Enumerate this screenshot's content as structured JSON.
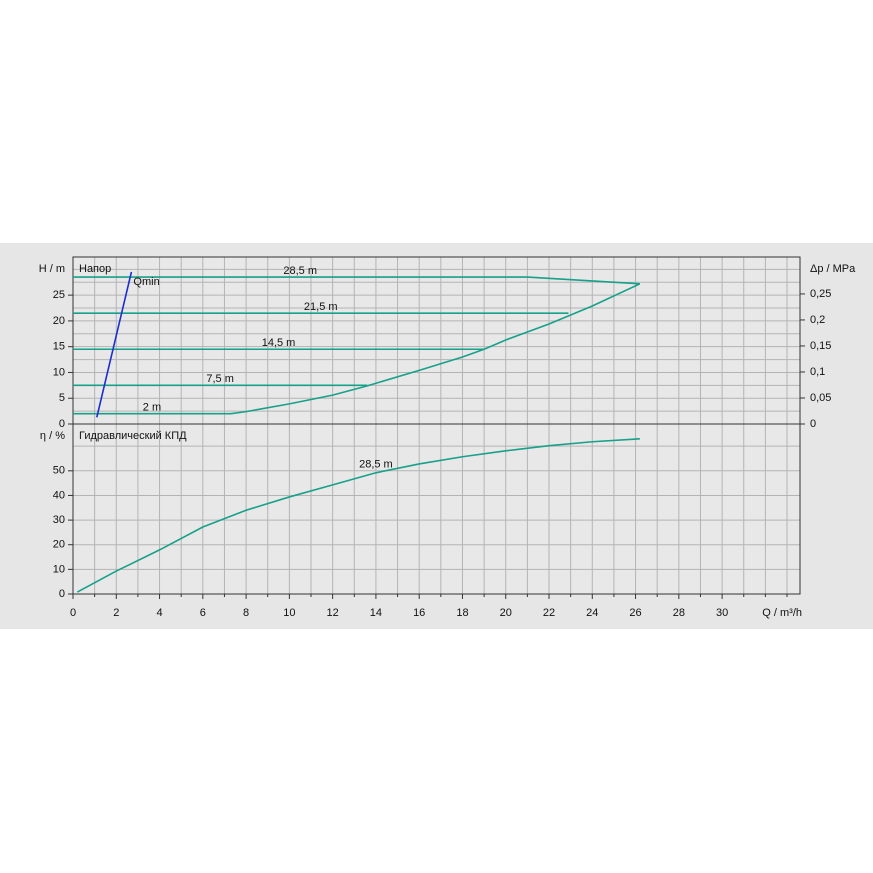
{
  "chart_data": [
    {
      "type": "line",
      "title": "Напор",
      "y_label": "H / m",
      "y2_label": "Δp / MPa",
      "xlim": [
        0,
        33.6
      ],
      "ylim": [
        0,
        32.4
      ],
      "y2lim": [
        0,
        0.321
      ],
      "x_gridlines": [
        1,
        2,
        3,
        4,
        5,
        6,
        7,
        8,
        9,
        10,
        11,
        12,
        13,
        14,
        15,
        16,
        17,
        18,
        19,
        20,
        21,
        22,
        23,
        24,
        25,
        26,
        27,
        28,
        29,
        30,
        31,
        32,
        33
      ],
      "yticks": [
        0,
        5,
        10,
        15,
        20,
        25
      ],
      "y_minor_ticks": [
        2.5,
        7.5,
        12.5,
        17.5,
        22.5,
        27.5,
        30
      ],
      "y2ticks": [
        0,
        {
          "value": 0.05,
          "label": "0,05"
        },
        {
          "value": 0.1,
          "label": "0,1"
        },
        {
          "value": 0.15,
          "label": "0,15"
        },
        {
          "value": 0.2,
          "label": "0,2"
        },
        {
          "value": 0.25,
          "label": "0,25"
        }
      ],
      "grid": true,
      "series": [
        {
          "name": "28,5 m",
          "color": "#17a08a",
          "x": [
            0,
            21,
            26.2
          ],
          "values": [
            28.5,
            28.5,
            27.2
          ]
        },
        {
          "name": "21,5 m",
          "color": "#17a08a",
          "x": [
            0,
            22.9
          ],
          "values": [
            21.5,
            21.5
          ]
        },
        {
          "name": "14,5 m",
          "color": "#17a08a",
          "x": [
            0,
            19
          ],
          "values": [
            14.5,
            14.5
          ]
        },
        {
          "name": "7,5 m",
          "color": "#17a08a",
          "x": [
            0,
            13.6
          ],
          "values": [
            7.5,
            7.5
          ]
        },
        {
          "name": "2 m",
          "color": "#17a08a",
          "x": [
            0,
            7.3,
            8,
            10,
            12,
            13.6,
            16,
            18,
            19,
            20,
            22,
            24,
            26.2
          ],
          "values": [
            2,
            2,
            2.4,
            3.9,
            5.6,
            7.4,
            10.4,
            13,
            14.5,
            16.3,
            19.4,
            22.9,
            27.2
          ]
        },
        {
          "name": "Qmin",
          "color": "#1a2ed0",
          "x": [
            1.1,
            2.7
          ],
          "values": [
            1.3,
            29.5
          ]
        }
      ]
    },
    {
      "type": "line",
      "title": "Гидравлический КПД",
      "y_label": "η / %",
      "x_label": "Q / m³/h",
      "xlim": [
        0,
        33.6
      ],
      "ylim": [
        0,
        69
      ],
      "xticks": [
        0,
        2,
        4,
        6,
        8,
        10,
        12,
        14,
        16,
        18,
        20,
        22,
        24,
        26,
        28,
        30
      ],
      "x_minor_ticks": [
        1,
        3,
        5,
        7,
        9,
        11,
        13,
        15,
        17,
        19,
        21,
        23,
        25,
        27,
        29,
        31,
        32,
        33
      ],
      "yticks": [
        0,
        10,
        20,
        30,
        40,
        50
      ],
      "y_minor_ticks": [
        60
      ],
      "grid": true,
      "series": [
        {
          "name": "28,5 m",
          "color": "#17a08a",
          "x": [
            0.2,
            2,
            4,
            6,
            8,
            10,
            12,
            14,
            16,
            18,
            20,
            22,
            24,
            26.2
          ],
          "values": [
            0.8,
            9.3,
            17.9,
            27.2,
            34,
            39.4,
            44.3,
            49.2,
            52.8,
            55.7,
            58.1,
            60.2,
            61.8,
            63
          ]
        }
      ]
    }
  ]
}
